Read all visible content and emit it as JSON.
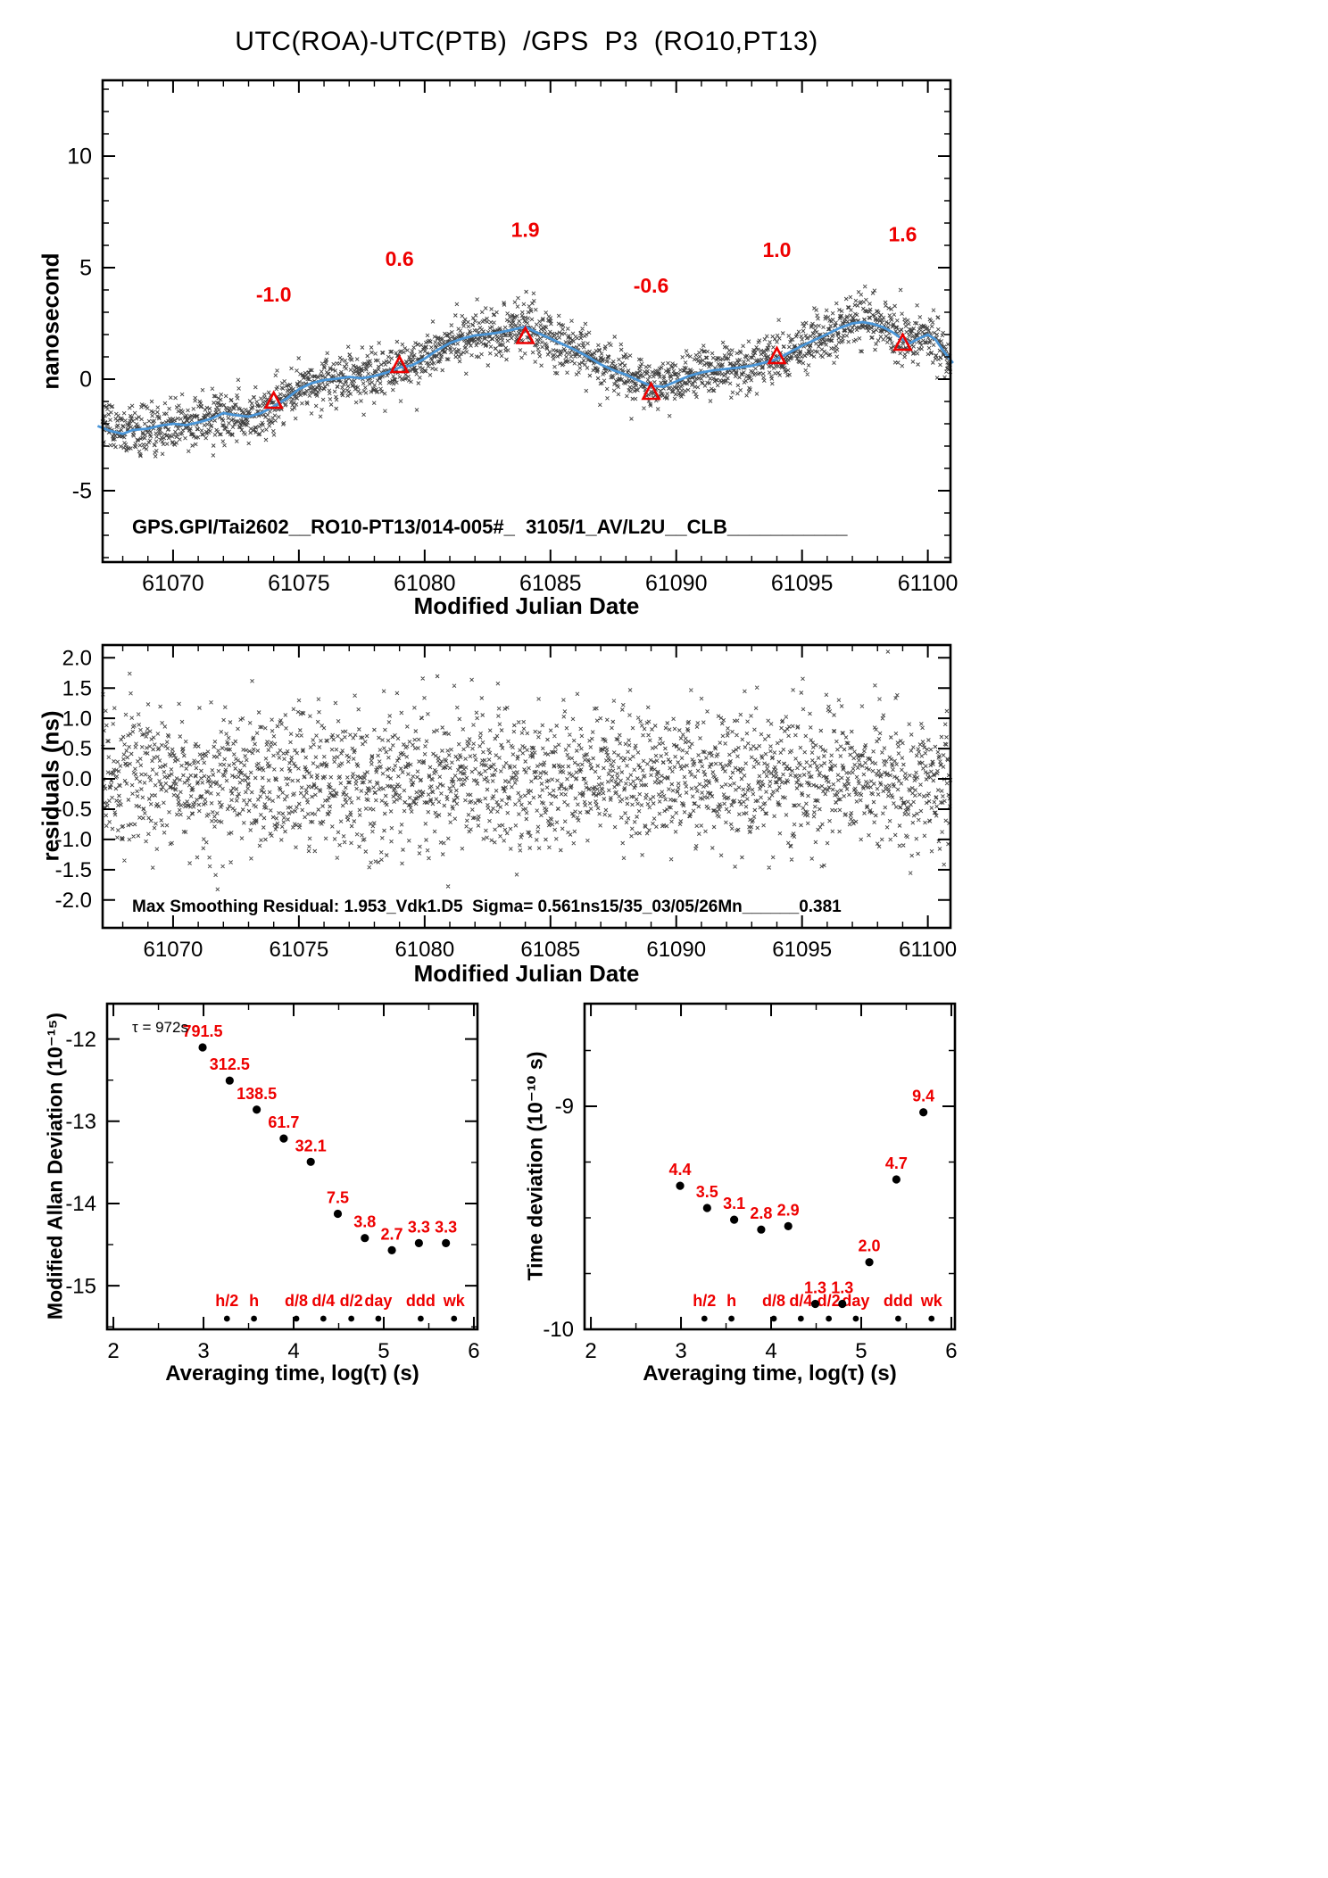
{
  "title": "UTC(ROA)-UTC(PTB)  /GPS  P3  (RO10,PT13)",
  "colors": {
    "scatter": "#151515",
    "smooth": "#4a96d8",
    "red": "#ee0000",
    "black": "#000000"
  },
  "chart_data": [
    {
      "id": "phase",
      "type": "scatter",
      "xlabel": "Modified Julian Date",
      "ylabel": "nanosecond",
      "xlim": [
        61067.2,
        61100.9
      ],
      "ylim": [
        -8.2,
        13.4
      ],
      "xticks": [
        61070,
        61075,
        61080,
        61085,
        61090,
        61095,
        61100
      ],
      "xtick_labels": [
        "61070",
        "61075",
        "61080",
        "61085",
        "61090",
        "61095",
        "61100"
      ],
      "yticks": [
        -5,
        0,
        5,
        10
      ],
      "ytick_labels": [
        "-5",
        "0",
        "5",
        "10"
      ],
      "x_minor_step": 1,
      "y_minor_step": 1,
      "annotation": "GPS.GPI/Tai2602__RO10-PT13/014-005#_  3105/1_AV/L2U__CLB___________",
      "n_points": 2400,
      "noise_sigma": 0.56,
      "seed": 20251,
      "smooth_line": [
        [
          61067.0,
          -2.1
        ],
        [
          61067.5,
          -2.32
        ],
        [
          61068.0,
          -2.45
        ],
        [
          61068.4,
          -2.28
        ],
        [
          61069.0,
          -2.22
        ],
        [
          61069.5,
          -2.08
        ],
        [
          61070.0,
          -2.0
        ],
        [
          61070.5,
          -2.06
        ],
        [
          61071.0,
          -1.94
        ],
        [
          61071.5,
          -1.78
        ],
        [
          61072.0,
          -1.52
        ],
        [
          61072.4,
          -1.6
        ],
        [
          61073.0,
          -1.68
        ],
        [
          61073.5,
          -1.52
        ],
        [
          61074.0,
          -1.22
        ],
        [
          61074.5,
          -0.88
        ],
        [
          61075.0,
          -0.45
        ],
        [
          61075.5,
          -0.18
        ],
        [
          61076.0,
          -0.04
        ],
        [
          61076.5,
          0.02
        ],
        [
          61077.0,
          0.1
        ],
        [
          61077.5,
          0.04
        ],
        [
          61078.0,
          0.14
        ],
        [
          61078.5,
          0.3
        ],
        [
          61079.0,
          0.52
        ],
        [
          61079.5,
          0.62
        ],
        [
          61080.0,
          0.92
        ],
        [
          61080.5,
          1.3
        ],
        [
          61081.0,
          1.62
        ],
        [
          61081.5,
          1.82
        ],
        [
          61082.0,
          1.96
        ],
        [
          61082.5,
          2.02
        ],
        [
          61083.0,
          2.1
        ],
        [
          61083.5,
          2.22
        ],
        [
          61084.0,
          2.35
        ],
        [
          61084.4,
          2.12
        ],
        [
          61085.0,
          1.82
        ],
        [
          61085.5,
          1.56
        ],
        [
          61086.0,
          1.3
        ],
        [
          61086.5,
          1.0
        ],
        [
          61087.0,
          0.66
        ],
        [
          61087.5,
          0.4
        ],
        [
          61088.0,
          0.2
        ],
        [
          61088.5,
          -0.06
        ],
        [
          61089.0,
          -0.3
        ],
        [
          61089.5,
          -0.34
        ],
        [
          61090.0,
          -0.1
        ],
        [
          61090.5,
          0.14
        ],
        [
          61091.0,
          0.3
        ],
        [
          61091.5,
          0.4
        ],
        [
          61092.0,
          0.46
        ],
        [
          61092.5,
          0.52
        ],
        [
          61093.0,
          0.6
        ],
        [
          61093.5,
          0.74
        ],
        [
          61094.0,
          0.9
        ],
        [
          61094.5,
          1.2
        ],
        [
          61095.0,
          1.5
        ],
        [
          61095.5,
          1.76
        ],
        [
          61096.0,
          2.02
        ],
        [
          61096.5,
          2.3
        ],
        [
          61097.0,
          2.5
        ],
        [
          61097.4,
          2.56
        ],
        [
          61097.8,
          2.48
        ],
        [
          61098.2,
          2.34
        ],
        [
          61098.6,
          2.1
        ],
        [
          61099.0,
          1.78
        ],
        [
          61099.3,
          1.62
        ],
        [
          61099.6,
          1.8
        ],
        [
          61100.0,
          2.0
        ],
        [
          61100.3,
          1.78
        ],
        [
          61100.6,
          1.3
        ],
        [
          61101.0,
          0.72
        ]
      ],
      "triangles": [
        {
          "x": 61074.0,
          "y": -1.0,
          "label": "-1.0",
          "label_y": 3.8
        },
        {
          "x": 61079.0,
          "y": 0.6,
          "label": "0.6",
          "label_y": 5.4
        },
        {
          "x": 61084.0,
          "y": 1.9,
          "label": "1.9",
          "label_y": 6.7
        },
        {
          "x": 61089.0,
          "y": -0.6,
          "label": "-0.6",
          "label_y": 4.2
        },
        {
          "x": 61094.0,
          "y": 1.0,
          "label": "1.0",
          "label_y": 5.8
        },
        {
          "x": 61099.0,
          "y": 1.6,
          "label": "1.6",
          "label_y": 6.5
        }
      ]
    },
    {
      "id": "residuals",
      "type": "scatter",
      "xlabel": "Modified Julian Date",
      "ylabel": "residuals (ns)",
      "xlim": [
        61067.2,
        61100.9
      ],
      "ylim": [
        -2.46,
        2.21
      ],
      "xticks": [
        61070,
        61075,
        61080,
        61085,
        61090,
        61095,
        61100
      ],
      "xtick_labels": [
        "61070",
        "61075",
        "61080",
        "61085",
        "61090",
        "61095",
        "61100"
      ],
      "yticks": [
        -2.0,
        -1.5,
        -1.0,
        -0.5,
        0.0,
        0.5,
        1.0,
        1.5,
        2.0
      ],
      "ytick_labels": [
        "-2.0",
        "-1.5",
        "-1.0",
        "-0.5",
        "0.0",
        "0.5",
        "1.0",
        "1.5",
        "2.0"
      ],
      "x_minor_step": 1,
      "annotation": "Max Smoothing Residual: 1.953_Vdk1.D5  Sigma= 0.561ns15/35_03/05/26Mn______0.381",
      "n_points": 2400,
      "noise_sigma": 0.575,
      "seed": 777
    },
    {
      "id": "mdev",
      "type": "scatter",
      "xlabel": "Averaging time, log(τ) (s)",
      "ylabel": "Modified Allan Deviation (10⁻¹⁵)",
      "tau_annotation": "τ = 972s",
      "xlim": [
        1.93,
        6.04
      ],
      "ylim": [
        -15.53,
        -11.57
      ],
      "xticks": [
        2,
        3,
        4,
        5,
        6
      ],
      "xtick_labels": [
        "2",
        "3",
        "4",
        "5",
        "6"
      ],
      "yticks": [
        -15,
        -14,
        -13,
        -12
      ],
      "ytick_labels": [
        "-15",
        "-14",
        "-13",
        "-12"
      ],
      "x_minor_step": 0.5,
      "y_minor_step": 0.5,
      "value_exponent": -15,
      "log_tau": [
        2.99,
        3.29,
        3.59,
        3.89,
        4.19,
        4.49,
        4.79,
        5.09,
        5.39,
        5.69
      ],
      "values": [
        791.5,
        312.5,
        138.5,
        61.7,
        32.1,
        7.5,
        3.8,
        2.7,
        3.3,
        3.3
      ],
      "point_labels": [
        "791.5",
        "312.5",
        "138.5",
        "61.7",
        "32.1",
        "7.5",
        "3.8",
        "2.7",
        "3.3",
        "3.3"
      ],
      "time_markers": [
        {
          "label": "h/2",
          "log_tau": 3.26
        },
        {
          "label": "h",
          "log_tau": 3.56
        },
        {
          "label": "d/8",
          "log_tau": 4.03
        },
        {
          "label": "d/4",
          "log_tau": 4.33
        },
        {
          "label": "d/2",
          "log_tau": 4.64
        },
        {
          "label": "day",
          "log_tau": 4.94
        },
        {
          "label": "ddd",
          "log_tau": 5.41
        },
        {
          "label": "wk",
          "log_tau": 5.78
        }
      ]
    },
    {
      "id": "tdev",
      "type": "scatter",
      "xlabel": "Averaging time, log(τ) (s)",
      "ylabel": "Time deviation (10⁻¹⁰ s)",
      "xlim": [
        1.93,
        6.04
      ],
      "ylim": [
        -10.0,
        -8.54
      ],
      "xticks": [
        2,
        3,
        4,
        5,
        6
      ],
      "xtick_labels": [
        "2",
        "3",
        "4",
        "5",
        "6"
      ],
      "yticks": [
        -10,
        -9
      ],
      "ytick_labels": [
        "-10",
        "-9"
      ],
      "x_minor_step": 0.5,
      "y_minor_step": 0.25,
      "value_exponent": -10,
      "log_tau": [
        2.99,
        3.29,
        3.59,
        3.89,
        4.19,
        4.49,
        4.79,
        5.09,
        5.39,
        5.69
      ],
      "values": [
        4.4,
        3.5,
        3.1,
        2.8,
        2.9,
        1.3,
        1.3,
        2.0,
        4.7,
        9.4
      ],
      "point_labels": [
        "4.4",
        "3.5",
        "3.1",
        "2.8",
        "2.9",
        "1.3",
        "1.3",
        "2.0",
        "4.7",
        "9.4"
      ],
      "time_markers": [
        {
          "label": "h/2",
          "log_tau": 3.26
        },
        {
          "label": "h",
          "log_tau": 3.56
        },
        {
          "label": "d/8",
          "log_tau": 4.03
        },
        {
          "label": "d/4",
          "log_tau": 4.33
        },
        {
          "label": "d/2",
          "log_tau": 4.64
        },
        {
          "label": "day",
          "log_tau": 4.94
        },
        {
          "label": "ddd",
          "log_tau": 5.41
        },
        {
          "label": "wk",
          "log_tau": 5.78
        }
      ]
    }
  ]
}
